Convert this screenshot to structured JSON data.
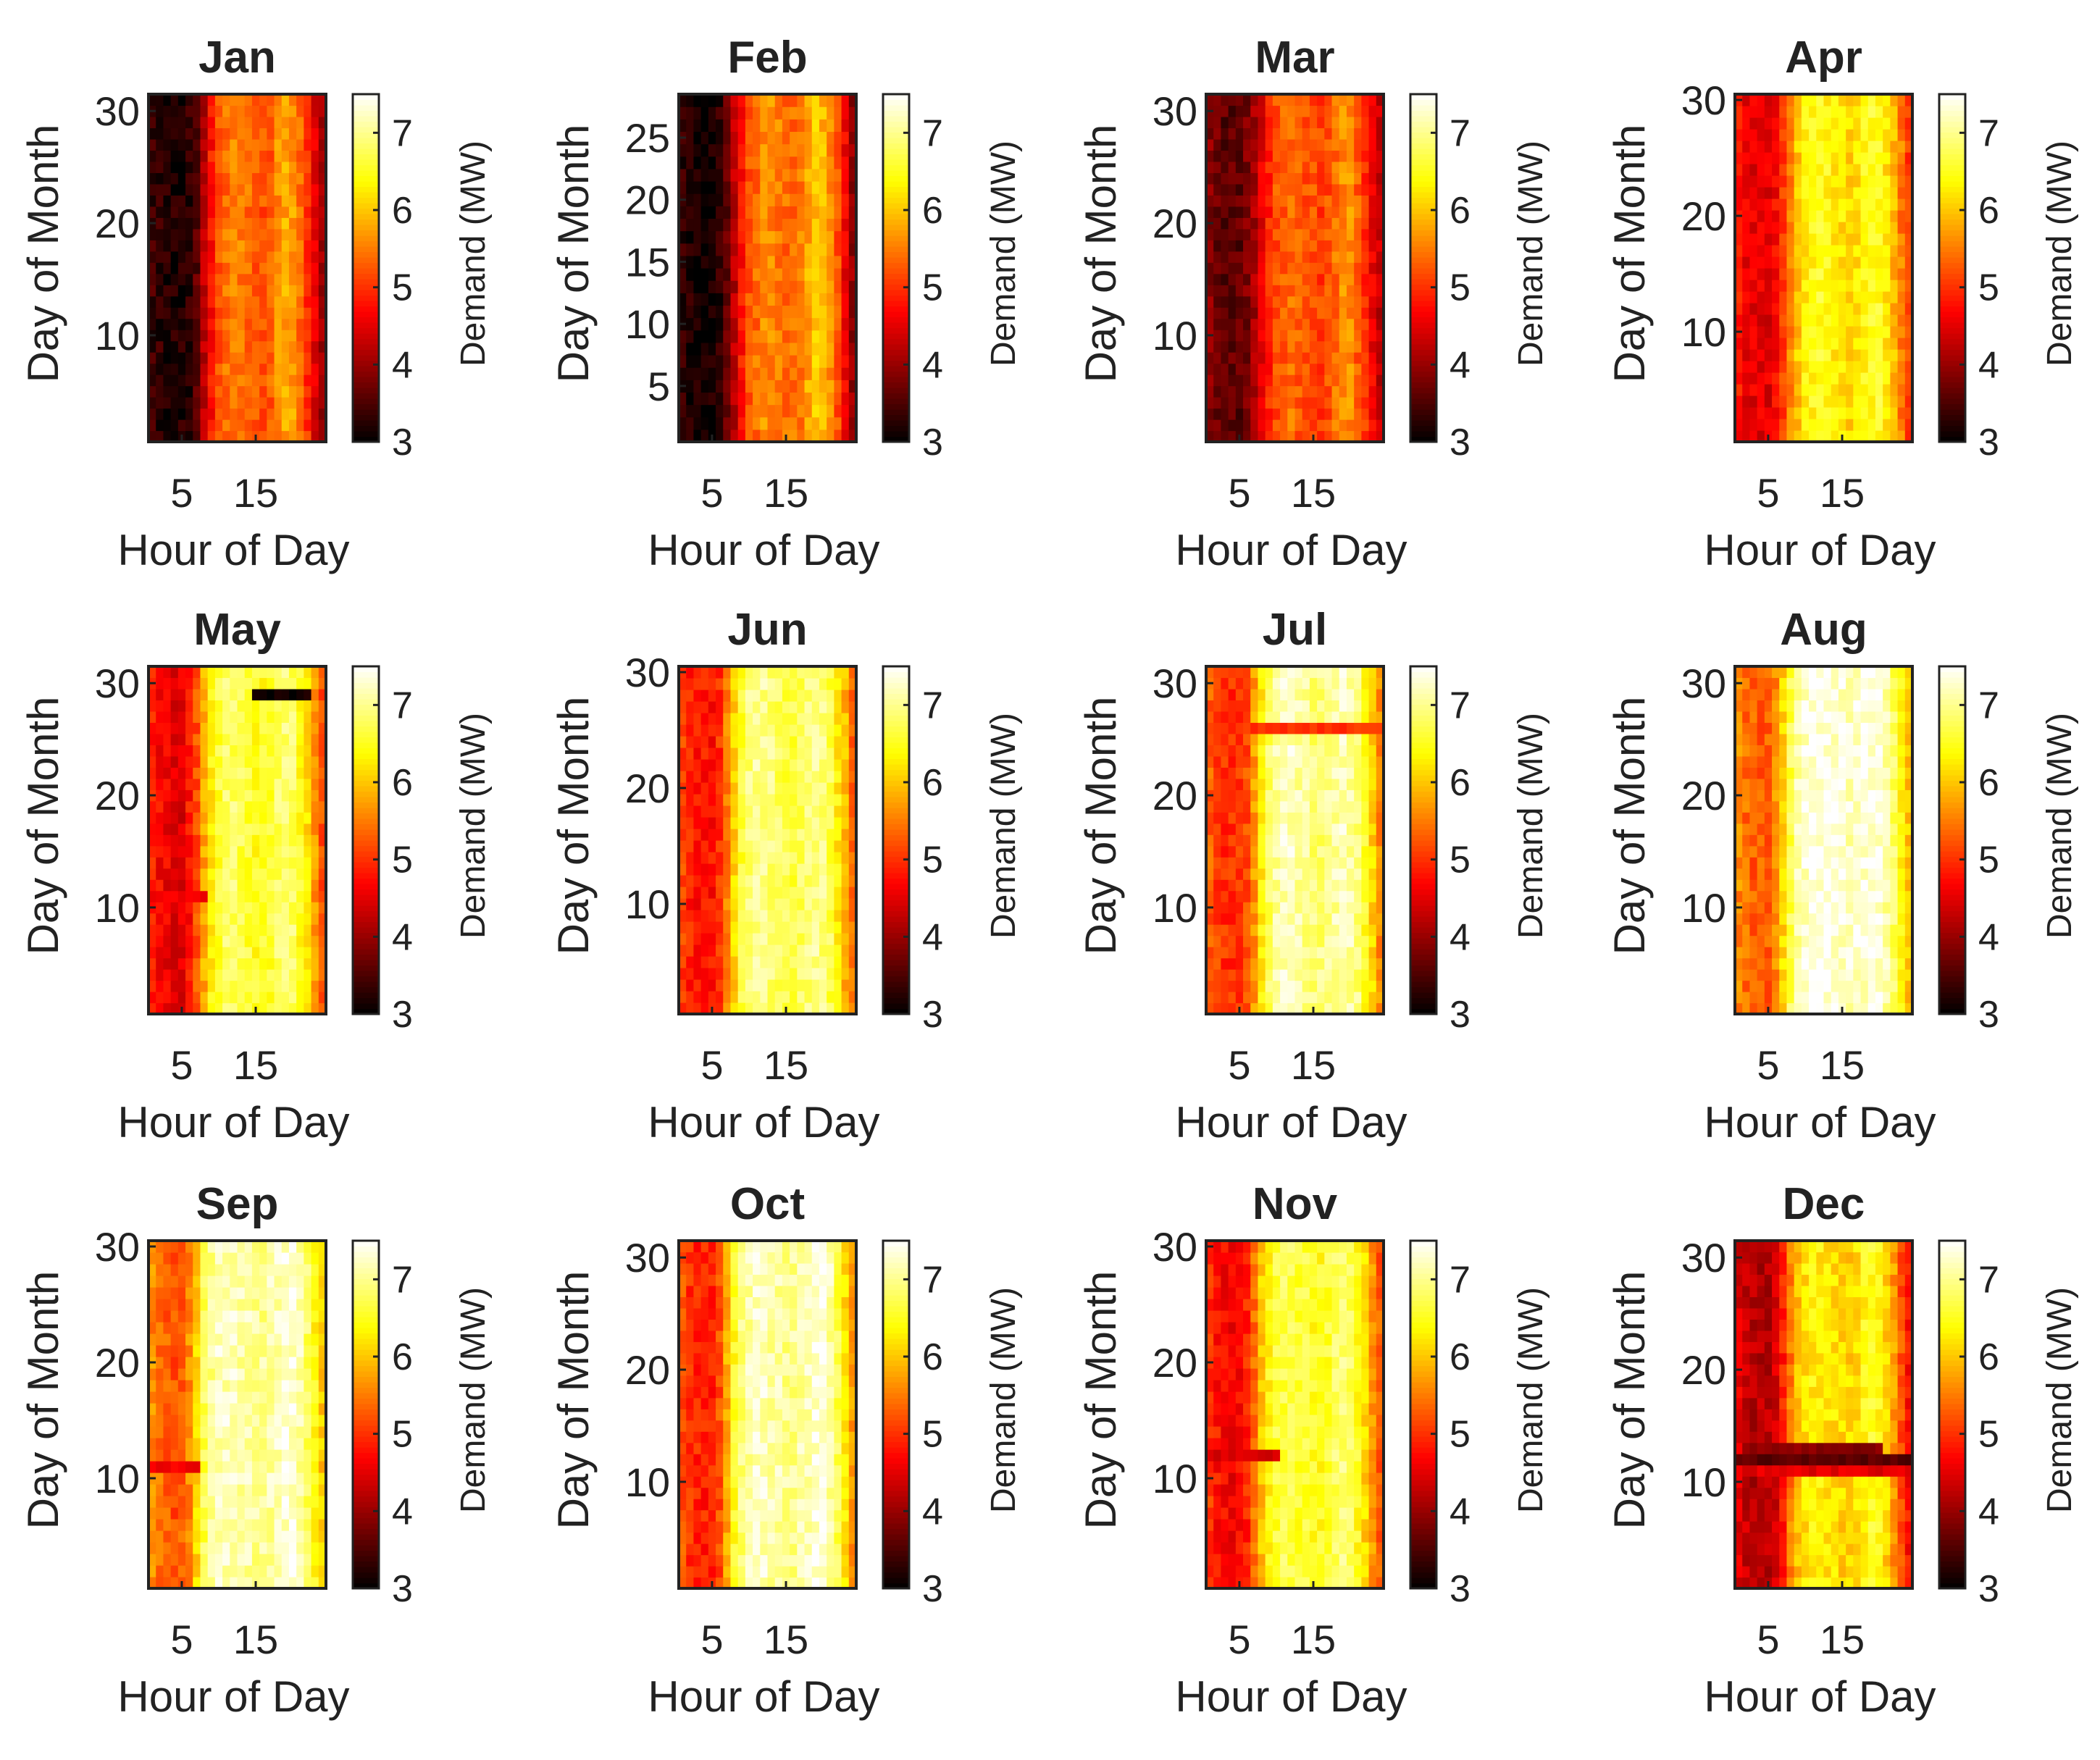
{
  "chart_data": {
    "type": "heatmap",
    "xlabel": "Hour of Day",
    "ylabel": "Day of Month",
    "colorbar_label": "Demand (MW)",
    "colormap": "hot",
    "clim": [
      3,
      7.5
    ],
    "colorbar_ticks": [
      3,
      4,
      5,
      6,
      7
    ],
    "x_ticks": [
      5,
      15
    ],
    "x_range": [
      1,
      24
    ],
    "layout_grid": [
      3,
      4
    ],
    "panels": [
      {
        "title": "Jan",
        "days": 31,
        "y_ticks": [
          10,
          20,
          30
        ],
        "profile": [
          3.4,
          3.3,
          3.2,
          3.2,
          3.2,
          3.3,
          3.6,
          4.2,
          4.8,
          5.2,
          5.4,
          5.5,
          5.5,
          5.4,
          5.3,
          5.2,
          5.3,
          5.6,
          5.8,
          5.7,
          5.4,
          5.0,
          4.5,
          4.0
        ],
        "anomalies": []
      },
      {
        "title": "Feb",
        "days": 28,
        "y_ticks": [
          5,
          10,
          15,
          20,
          25
        ],
        "profile": [
          3.3,
          3.2,
          3.1,
          3.1,
          3.1,
          3.3,
          3.6,
          4.2,
          4.8,
          5.2,
          5.4,
          5.6,
          5.6,
          5.5,
          5.4,
          5.4,
          5.5,
          5.8,
          6.0,
          5.9,
          5.6,
          5.2,
          4.6,
          4.0
        ],
        "anomalies": []
      },
      {
        "title": "Mar",
        "days": 31,
        "y_ticks": [
          10,
          20,
          30
        ],
        "profile": [
          3.9,
          3.7,
          3.6,
          3.6,
          3.6,
          3.8,
          4.1,
          4.5,
          4.9,
          5.2,
          5.3,
          5.4,
          5.3,
          5.2,
          5.2,
          5.1,
          5.2,
          5.4,
          5.6,
          5.6,
          5.3,
          5.0,
          4.6,
          4.3
        ],
        "anomalies": []
      },
      {
        "title": "Apr",
        "days": 30,
        "y_ticks": [
          10,
          20,
          30
        ],
        "profile": [
          4.8,
          4.6,
          4.5,
          4.5,
          4.5,
          4.7,
          5.1,
          5.6,
          6.0,
          6.3,
          6.4,
          6.5,
          6.4,
          6.3,
          6.2,
          6.1,
          6.2,
          6.4,
          6.5,
          6.5,
          6.2,
          5.9,
          5.5,
          5.1
        ],
        "anomalies": []
      },
      {
        "title": "May",
        "days": 31,
        "y_ticks": [
          10,
          20,
          30
        ],
        "profile": [
          4.9,
          4.7,
          4.6,
          4.5,
          4.5,
          4.8,
          5.2,
          5.8,
          6.3,
          6.6,
          6.8,
          6.8,
          6.7,
          6.6,
          6.5,
          6.5,
          6.6,
          6.8,
          6.9,
          6.8,
          6.5,
          6.2,
          5.7,
          5.2
        ],
        "anomalies": [
          {
            "day": 29,
            "hours": [
              15,
              22
            ],
            "value": 3.1
          },
          {
            "day": 11,
            "hours": [
              1,
              8
            ],
            "value": 4.6
          }
        ]
      },
      {
        "title": "Jun",
        "days": 30,
        "y_ticks": [
          10,
          20,
          30
        ],
        "profile": [
          5.1,
          4.9,
          4.8,
          4.8,
          4.8,
          5.0,
          5.5,
          6.1,
          6.6,
          6.9,
          7.0,
          7.0,
          6.9,
          6.8,
          6.7,
          6.7,
          6.8,
          6.9,
          7.0,
          6.9,
          6.7,
          6.3,
          5.9,
          5.4
        ],
        "anomalies": []
      },
      {
        "title": "Jul",
        "days": 31,
        "y_ticks": [
          10,
          20,
          30
        ],
        "profile": [
          5.3,
          5.1,
          5.0,
          5.0,
          5.0,
          5.2,
          5.7,
          6.3,
          6.8,
          7.1,
          7.2,
          7.2,
          7.1,
          7.0,
          6.9,
          6.9,
          7.0,
          7.1,
          7.2,
          7.1,
          6.9,
          6.5,
          6.1,
          5.6
        ],
        "anomalies": [
          {
            "day": 26,
            "hours": [
              1,
              24
            ],
            "value": 5.0
          }
        ]
      },
      {
        "title": "Aug",
        "days": 31,
        "y_ticks": [
          10,
          20,
          30
        ],
        "profile": [
          5.6,
          5.4,
          5.3,
          5.3,
          5.3,
          5.6,
          6.1,
          6.7,
          7.1,
          7.3,
          7.4,
          7.4,
          7.4,
          7.3,
          7.3,
          7.2,
          7.3,
          7.3,
          7.4,
          7.3,
          7.1,
          6.8,
          6.4,
          6.0
        ],
        "anomalies": []
      },
      {
        "title": "Sep",
        "days": 30,
        "y_ticks": [
          10,
          20,
          30
        ],
        "profile": [
          5.6,
          5.4,
          5.3,
          5.2,
          5.3,
          5.6,
          6.1,
          6.7,
          7.0,
          7.2,
          7.2,
          7.2,
          7.1,
          7.1,
          7.0,
          7.0,
          7.1,
          7.2,
          7.3,
          7.3,
          7.1,
          6.8,
          6.4,
          6.0
        ],
        "anomalies": [
          {
            "day": 11,
            "hours": [
              1,
              7
            ],
            "value": 4.6
          }
        ]
      },
      {
        "title": "Oct",
        "days": 31,
        "y_ticks": [
          10,
          20,
          30
        ],
        "profile": [
          5.2,
          5.0,
          4.9,
          4.9,
          4.9,
          5.2,
          5.8,
          6.5,
          6.9,
          7.1,
          7.2,
          7.2,
          7.1,
          7.1,
          7.0,
          7.0,
          7.1,
          7.2,
          7.3,
          7.3,
          7.1,
          6.7,
          6.2,
          5.7
        ],
        "anomalies": [
          {
            "day": 22,
            "hours": [
              1,
              6
            ],
            "value": 5.0
          }
        ]
      },
      {
        "title": "Nov",
        "days": 30,
        "y_ticks": [
          10,
          20,
          30
        ],
        "profile": [
          5.0,
          4.8,
          4.7,
          4.6,
          4.7,
          4.9,
          5.4,
          6.0,
          6.4,
          6.6,
          6.7,
          6.7,
          6.6,
          6.6,
          6.5,
          6.5,
          6.6,
          6.8,
          6.9,
          6.8,
          6.5,
          6.1,
          5.7,
          5.3
        ],
        "anomalies": [
          {
            "day": 12,
            "hours": [
              1,
              10
            ],
            "value": 4.4
          }
        ]
      },
      {
        "title": "Dec",
        "days": 31,
        "y_ticks": [
          10,
          20,
          30
        ],
        "profile": [
          4.5,
          4.3,
          4.2,
          4.2,
          4.2,
          4.4,
          4.9,
          5.5,
          6.0,
          6.2,
          6.3,
          6.3,
          6.2,
          6.2,
          6.1,
          6.1,
          6.2,
          6.4,
          6.5,
          6.4,
          6.1,
          5.7,
          5.2,
          4.8
        ],
        "anomalies": [
          {
            "day": 12,
            "hours": [
              1,
              24
            ],
            "value": 3.6
          },
          {
            "day": 13,
            "hours": [
              2,
              20
            ],
            "value": 3.9
          },
          {
            "day": 11,
            "hours": [
              1,
              24
            ],
            "value": 4.5
          }
        ]
      }
    ]
  }
}
